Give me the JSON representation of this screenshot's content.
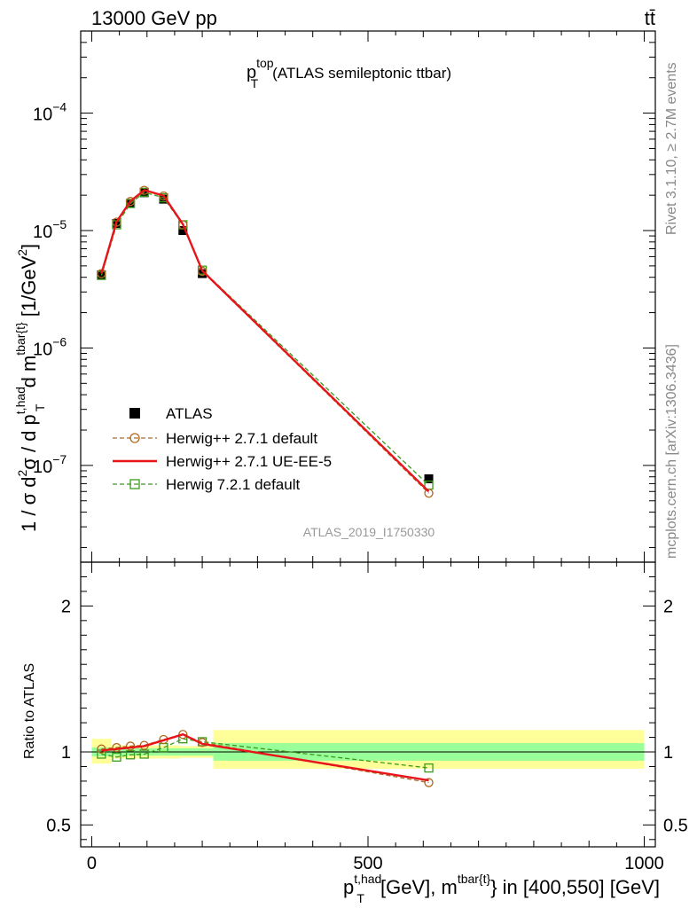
{
  "header": {
    "left": "13000 GeV pp",
    "right": "tt̄"
  },
  "side_labels": {
    "rivet": "Rivet 3.1.10, ≥ 2.7M events",
    "mcplots": "mcplots.cern.ch [arXiv:1306.3436]"
  },
  "plot_title": {
    "main": "p",
    "sup": "top",
    "sub": "T",
    "rest": "(ATLAS semileptonic ttbar)"
  },
  "analysis_id": "ATLAS_2019_I1750330",
  "y_axis_label": {
    "part1": "1 / σ d",
    "sup2": "2",
    "part2": "σ / d p",
    "sup_had": "t,had",
    "sub_T": "T",
    "part3": " d m",
    "sup_tbar": "tbar{t}",
    "part4": " [1/GeV",
    "sup_unit": "2",
    "part5": "]"
  },
  "ratio_y_label": "Ratio to ATLAS",
  "x_axis_label": {
    "p": "p",
    "sup_had": "t,had",
    "sub_T": "T",
    "middle": " [GeV], m",
    "sup_tbar": "tbar{t}",
    "end": "} in [400,550] [GeV]"
  },
  "legend": [
    {
      "label": "ATLAS",
      "color": "#000000",
      "style": "marker-square-filled"
    },
    {
      "label": "Herwig++ 2.7.1 default",
      "color": "#b06a1e",
      "style": "dashed-circle"
    },
    {
      "label": "Herwig++ 2.7.1 UE-EE-5",
      "color": "#e8141c",
      "style": "solid-line"
    },
    {
      "label": "Herwig 7.2.1 default",
      "color": "#3a9a1a",
      "style": "dashed-square"
    }
  ],
  "chart_data": {
    "type": "line",
    "main": {
      "yscale": "log",
      "ylim": [
        1.5e-08,
        0.0005
      ],
      "xlim": [
        -20,
        1020
      ],
      "y_tick_labels": [
        {
          "value": 0.0001,
          "base": "10",
          "exp": "−4"
        },
        {
          "value": 1e-05,
          "base": "10",
          "exp": "−5"
        },
        {
          "value": 1e-06,
          "base": "10",
          "exp": "−6"
        },
        {
          "value": 1e-07,
          "base": "10",
          "exp": "−7"
        }
      ],
      "series": [
        {
          "name": "ATLAS",
          "x": [
            17.5,
            45,
            70,
            95,
            130,
            165,
            200,
            610
          ],
          "y": [
            4.2e-06,
            1.15e-05,
            1.7e-05,
            2.1e-05,
            1.85e-05,
            1e-05,
            4.3e-06,
            7.7e-08
          ]
        },
        {
          "name": "Herwig++ 2.7.1 default",
          "x": [
            17.5,
            45,
            70,
            95,
            130,
            165,
            200,
            610
          ],
          "y": [
            4.3e-06,
            1.18e-05,
            1.77e-05,
            2.2e-05,
            1.97e-05,
            1.12e-05,
            4.5e-06,
            5.8e-08
          ]
        },
        {
          "name": "Herwig++ 2.7.1 UE-EE-5",
          "x": [
            17.5,
            45,
            70,
            95,
            130,
            165,
            200,
            610
          ],
          "y": [
            4.3e-06,
            1.19e-05,
            1.78e-05,
            2.21e-05,
            1.98e-05,
            1.13e-05,
            4.55e-06,
            6e-08
          ]
        },
        {
          "name": "Herwig 7.2.1 default",
          "x": [
            17.5,
            45,
            70,
            95,
            130,
            165,
            200,
            610
          ],
          "y": [
            4.15e-06,
            1.12e-05,
            1.7e-05,
            2.12e-05,
            1.9e-05,
            1.12e-05,
            4.6e-06,
            6.8e-08
          ]
        }
      ]
    },
    "ratio": {
      "ylim": [
        0.35,
        2.3
      ],
      "y_ticks": [
        0.5,
        1,
        2
      ],
      "y_tick_labels": [
        "0.5",
        "1",
        "2"
      ],
      "bands": [
        {
          "x0": 0,
          "x1": 35,
          "green": [
            0.97,
            1.03
          ],
          "yellow": [
            0.92,
            1.09
          ]
        },
        {
          "x0": 35,
          "x1": 160,
          "green": [
            0.975,
            1.025
          ],
          "yellow": [
            0.955,
            1.045
          ]
        },
        {
          "x0": 160,
          "x1": 220,
          "green": [
            0.975,
            1.025
          ],
          "yellow": [
            0.96,
            1.04
          ]
        },
        {
          "x0": 220,
          "x1": 1000,
          "green": [
            0.94,
            1.06
          ],
          "yellow": [
            0.885,
            1.15
          ]
        }
      ],
      "series": [
        {
          "name": "Herwig++ 2.7.1 default",
          "x": [
            17.5,
            45,
            70,
            95,
            130,
            165,
            200,
            610
          ],
          "y": [
            1.02,
            1.03,
            1.04,
            1.045,
            1.085,
            1.12,
            1.065,
            0.79
          ]
        },
        {
          "name": "Herwig++ 2.7.1 UE-EE-5",
          "x": [
            17.5,
            45,
            70,
            95,
            130,
            165,
            200,
            610
          ],
          "y": [
            1.01,
            1.02,
            1.03,
            1.04,
            1.08,
            1.12,
            1.055,
            0.805
          ]
        },
        {
          "name": "Herwig 7.2.1 default",
          "x": [
            17.5,
            45,
            70,
            95,
            130,
            165,
            200,
            610
          ],
          "y": [
            0.985,
            0.965,
            0.98,
            0.985,
            1.03,
            1.09,
            1.07,
            0.89
          ]
        }
      ]
    },
    "x_ticks": [
      0,
      500,
      1000
    ],
    "x_tick_labels": [
      "0",
      "500",
      "1000"
    ]
  }
}
